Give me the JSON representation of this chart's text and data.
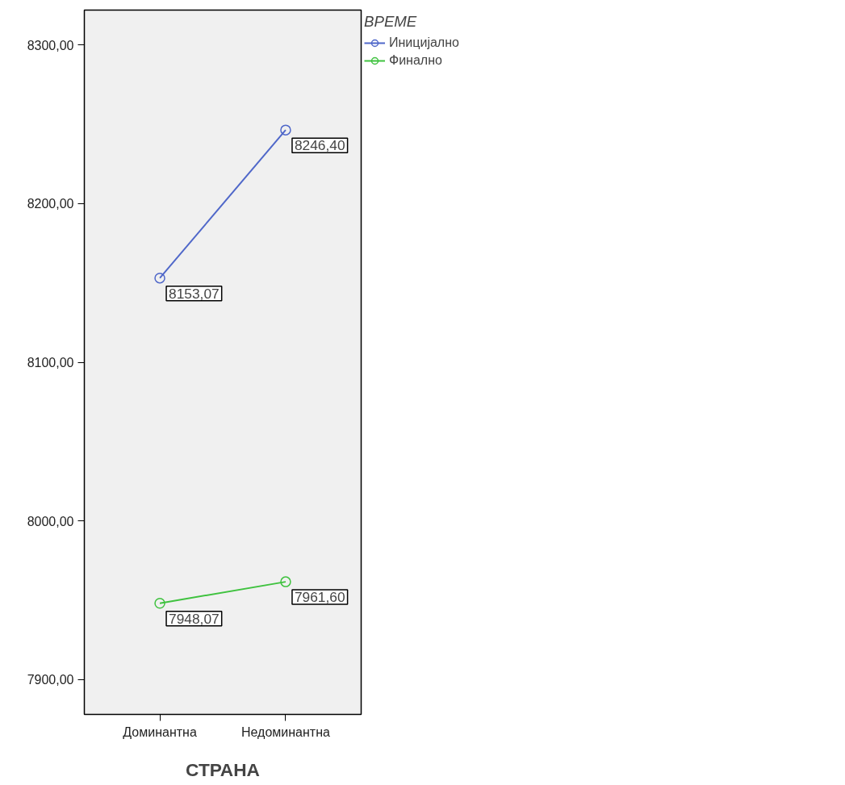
{
  "chart_data": {
    "type": "line",
    "xlabel": "СТРАНА",
    "legend_title": "ВРЕМЕ",
    "categories": [
      "Доминантна",
      "Недоминантна"
    ],
    "series": [
      {
        "name": "Иницијално",
        "color": "#4f67c9",
        "values": [
          8153.07,
          8246.4
        ],
        "value_labels": [
          "8153,07",
          "8246,40"
        ]
      },
      {
        "name": "Финално",
        "color": "#3fc23f",
        "values": [
          7948.07,
          7961.6
        ],
        "value_labels": [
          "7948,07",
          "7961,60"
        ]
      }
    ],
    "ylim": [
      7878,
      8322
    ],
    "yticks": [
      {
        "value": 7900,
        "label": "7900,00"
      },
      {
        "value": 8000,
        "label": "8000,00"
      },
      {
        "value": 8100,
        "label": "8100,00"
      },
      {
        "value": 8200,
        "label": "8200,00"
      },
      {
        "value": 8300,
        "label": "8300,00"
      }
    ],
    "grid": false,
    "legend": "top right",
    "marker": "circle",
    "line_style": "solid"
  }
}
